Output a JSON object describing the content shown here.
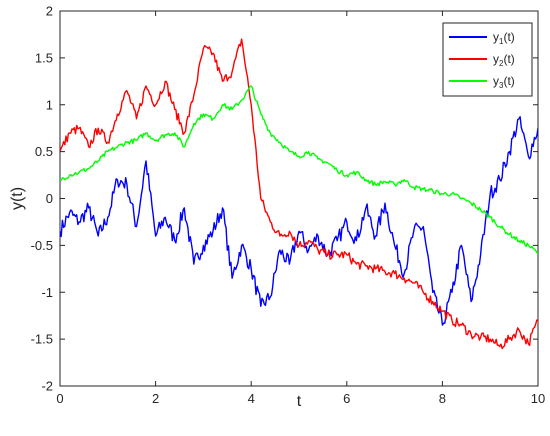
{
  "chart_data": {
    "type": "line",
    "title": "",
    "xlabel": "t",
    "ylabel": "y(t)",
    "xlim": [
      0,
      10
    ],
    "ylim": [
      -2,
      2
    ],
    "xticks": [
      0,
      2,
      4,
      6,
      8,
      10
    ],
    "yticks": [
      -2,
      -1.5,
      -1,
      -0.5,
      0,
      0.5,
      1,
      1.5,
      2
    ],
    "xtick_labels": [
      "0",
      "2",
      "4",
      "6",
      "8",
      "10"
    ],
    "ytick_labels": [
      "-2",
      "-1.5",
      "-1",
      "-0.5",
      "0",
      "0.5",
      "1",
      "1.5",
      "2"
    ],
    "grid": false,
    "legend_position": "top-right",
    "series": [
      {
        "name": "y1(t)",
        "legend_base": "y",
        "legend_sub": "1",
        "legend_suffix": "(t)",
        "color": "#0000ff",
        "x": [
          0,
          0.2,
          0.4,
          0.6,
          0.8,
          1.0,
          1.2,
          1.4,
          1.6,
          1.8,
          2.0,
          2.2,
          2.4,
          2.6,
          2.8,
          3.0,
          3.2,
          3.4,
          3.6,
          3.8,
          4.0,
          4.2,
          4.4,
          4.6,
          4.8,
          5.0,
          5.2,
          5.4,
          5.6,
          5.8,
          6.0,
          6.2,
          6.4,
          6.6,
          6.8,
          7.0,
          7.2,
          7.4,
          7.6,
          7.8,
          8.0,
          8.2,
          8.4,
          8.6,
          8.8,
          9.0,
          9.2,
          9.4,
          9.6,
          9.8,
          10.0
        ],
        "y": [
          -0.35,
          -0.15,
          -0.25,
          -0.1,
          -0.4,
          -0.2,
          0.2,
          0.15,
          -0.3,
          0.4,
          -0.4,
          -0.2,
          -0.45,
          -0.1,
          -0.7,
          -0.5,
          -0.35,
          -0.1,
          -0.85,
          -0.5,
          -0.75,
          -1.15,
          -1.05,
          -0.55,
          -0.7,
          -0.35,
          -0.55,
          -0.4,
          -0.6,
          -0.45,
          -0.25,
          -0.45,
          -0.1,
          -0.4,
          -0.05,
          -0.5,
          -0.8,
          -0.35,
          -0.3,
          -1.0,
          -1.35,
          -1.0,
          -0.5,
          -1.1,
          -0.6,
          0.05,
          0.2,
          0.5,
          0.85,
          0.45,
          0.75
        ]
      },
      {
        "name": "y2(t)",
        "legend_base": "y",
        "legend_sub": "2",
        "legend_suffix": "(t)",
        "color": "#ff0000",
        "x": [
          0,
          0.2,
          0.4,
          0.6,
          0.8,
          1.0,
          1.2,
          1.4,
          1.6,
          1.8,
          2.0,
          2.2,
          2.4,
          2.6,
          2.8,
          3.0,
          3.2,
          3.4,
          3.6,
          3.8,
          4.0,
          4.2,
          4.4,
          4.6,
          4.8,
          5.0,
          5.2,
          5.4,
          5.6,
          5.8,
          6.0,
          6.2,
          6.4,
          6.6,
          6.8,
          7.0,
          7.2,
          7.4,
          7.6,
          7.8,
          8.0,
          8.2,
          8.4,
          8.6,
          8.8,
          9.0,
          9.2,
          9.4,
          9.6,
          9.8,
          10.0
        ],
        "y": [
          0.5,
          0.7,
          0.75,
          0.55,
          0.75,
          0.6,
          0.9,
          1.15,
          0.85,
          1.2,
          1.0,
          1.25,
          0.95,
          0.7,
          1.1,
          1.6,
          1.55,
          1.25,
          1.35,
          1.7,
          1.0,
          0.0,
          -0.25,
          -0.4,
          -0.35,
          -0.5,
          -0.45,
          -0.55,
          -0.6,
          -0.6,
          -0.6,
          -0.7,
          -0.72,
          -0.75,
          -0.78,
          -0.8,
          -0.85,
          -0.9,
          -1.0,
          -1.1,
          -1.2,
          -1.3,
          -1.35,
          -1.45,
          -1.48,
          -1.5,
          -1.58,
          -1.5,
          -1.4,
          -1.55,
          -1.3
        ]
      },
      {
        "name": "y3(t)",
        "legend_base": "y",
        "legend_sub": "3",
        "legend_suffix": "(t)",
        "color": "#00ff00",
        "x": [
          0,
          0.2,
          0.4,
          0.6,
          0.8,
          1.0,
          1.2,
          1.4,
          1.6,
          1.8,
          2.0,
          2.2,
          2.4,
          2.6,
          2.8,
          3.0,
          3.2,
          3.4,
          3.6,
          3.8,
          4.0,
          4.2,
          4.4,
          4.6,
          4.8,
          5.0,
          5.2,
          5.4,
          5.6,
          5.8,
          6.0,
          6.2,
          6.4,
          6.6,
          6.8,
          7.0,
          7.2,
          7.4,
          7.6,
          7.8,
          8.0,
          8.2,
          8.4,
          8.6,
          8.8,
          9.0,
          9.2,
          9.4,
          9.6,
          9.8,
          10.0
        ],
        "y": [
          0.2,
          0.25,
          0.28,
          0.32,
          0.4,
          0.5,
          0.55,
          0.6,
          0.62,
          0.7,
          0.62,
          0.68,
          0.7,
          0.55,
          0.8,
          0.9,
          0.85,
          1.0,
          0.95,
          1.05,
          1.2,
          0.9,
          0.7,
          0.6,
          0.5,
          0.45,
          0.5,
          0.42,
          0.38,
          0.3,
          0.25,
          0.28,
          0.2,
          0.15,
          0.18,
          0.15,
          0.2,
          0.12,
          0.1,
          0.08,
          0.05,
          0.05,
          0.0,
          -0.05,
          -0.12,
          -0.2,
          -0.3,
          -0.38,
          -0.45,
          -0.5,
          -0.58
        ]
      }
    ]
  }
}
